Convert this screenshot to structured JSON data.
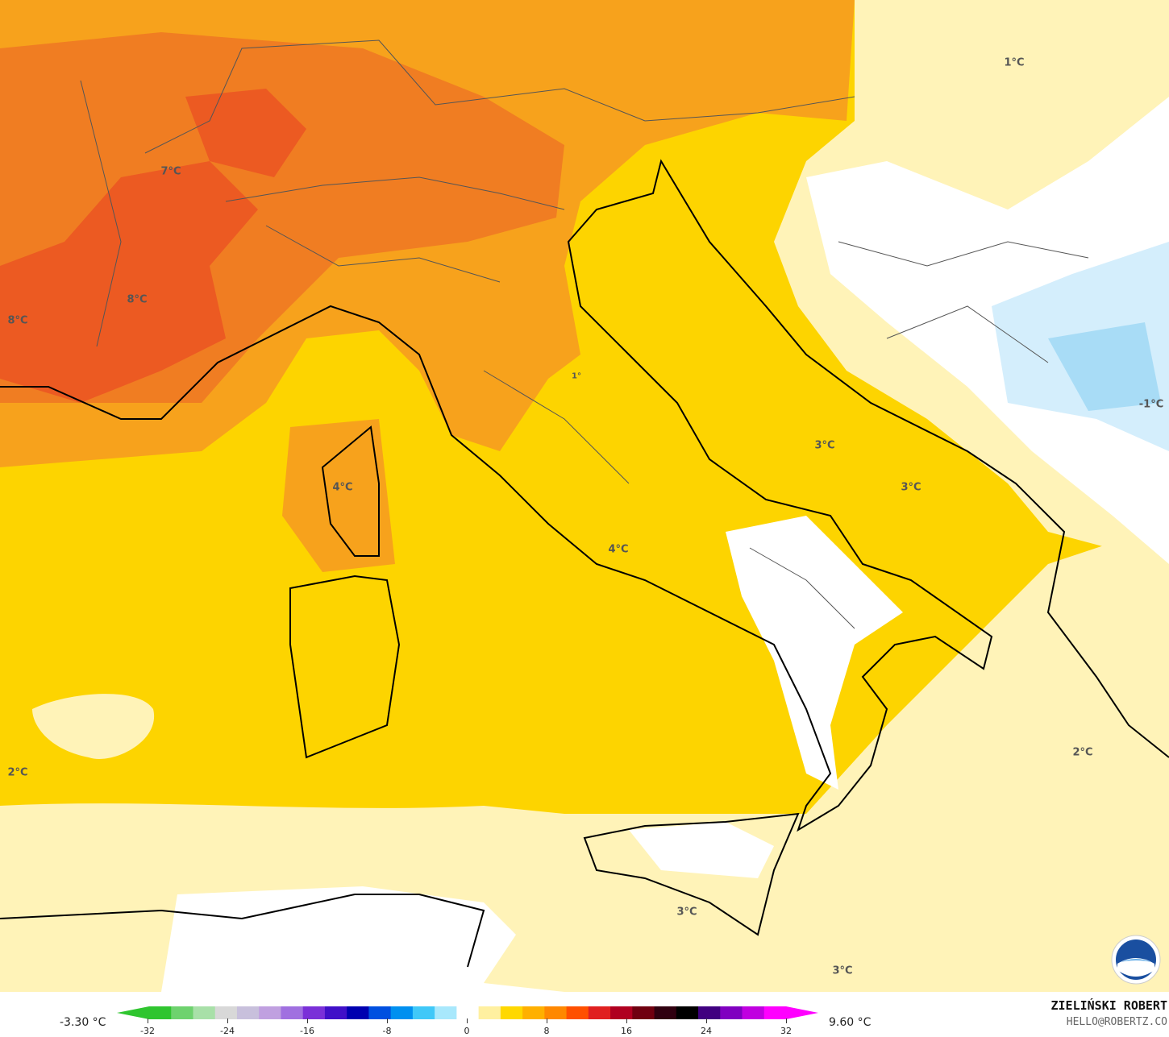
{
  "map": {
    "colors": {
      "sea_base": "#fdd400",
      "light_yellow": "#fff3b8",
      "pale": "#fff9dc",
      "orange": "#f7a21c",
      "deep_orange": "#f07d22",
      "red_orange": "#ec5a22",
      "white": "#ffffff",
      "light_blue": "#d4eefc",
      "blue": "#a8dcf6",
      "coast": "#000000",
      "borders": "#555555"
    },
    "labels": [
      "1°C",
      "7°C",
      "8°C",
      "8°C",
      "3°C",
      "3°C",
      "4°C",
      "4°C",
      "2°C",
      "2°C",
      "3°C",
      "3°C",
      "-1°C",
      "1°"
    ]
  },
  "legend": {
    "min_label": "-3.30 °C",
    "max_label": "9.60 °C",
    "ticks": [
      "-32",
      "-24",
      "-16",
      "-8",
      "0",
      "8",
      "16",
      "24",
      "32"
    ],
    "colors": [
      "#2fc52f",
      "#6ed26e",
      "#a8e0a8",
      "#d8d8d8",
      "#c8c0dc",
      "#c0a0e0",
      "#a070e0",
      "#7a30d8",
      "#4010c8",
      "#0000b0",
      "#0050e0",
      "#0090f0",
      "#40c8f8",
      "#a8e8fc",
      "#ffffff",
      "#fff0a0",
      "#ffd800",
      "#ffb000",
      "#ff8800",
      "#ff5000",
      "#e02020",
      "#b00020",
      "#700010",
      "#300010",
      "#000000",
      "#400080",
      "#8000c0",
      "#c000e0",
      "#ff00ff"
    ]
  },
  "brand": {
    "name": "ZIELIŃSKI ROBERT",
    "email": "HELLO@ROBERTZ.CO",
    "logo": "NOAA"
  }
}
